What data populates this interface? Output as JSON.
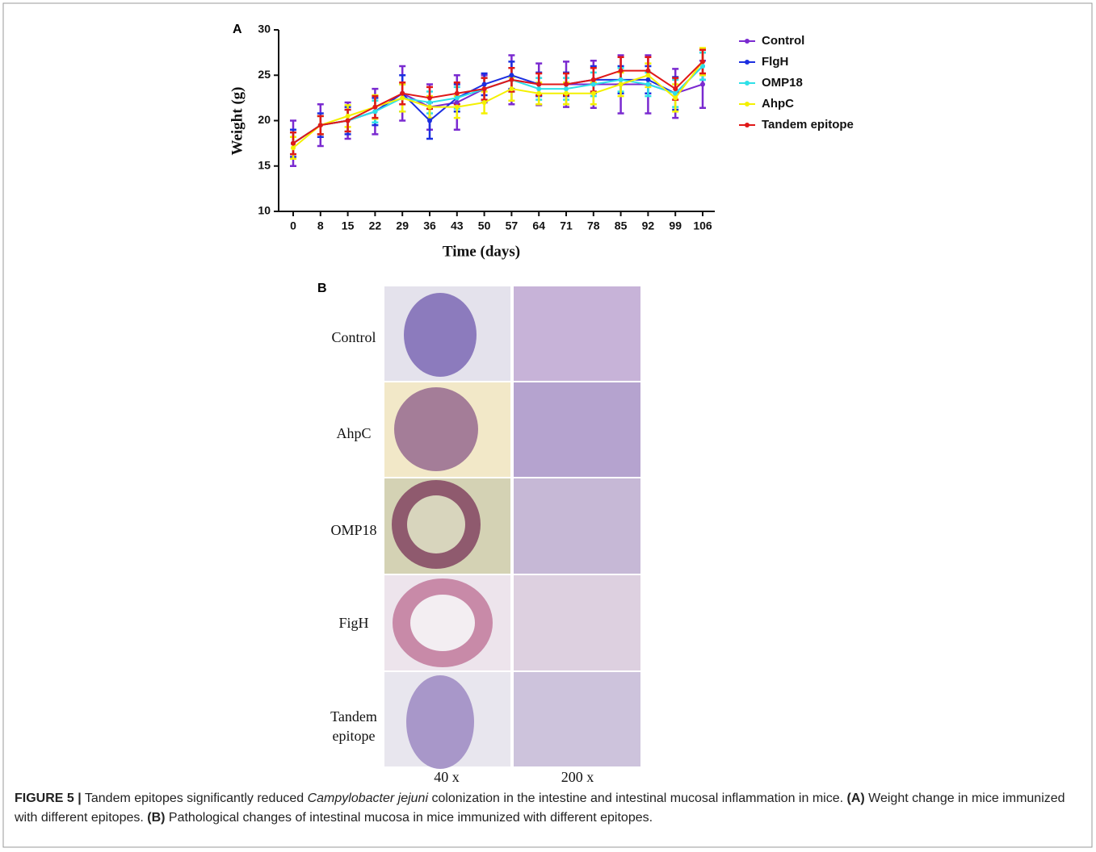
{
  "chart_data": {
    "type": "line",
    "panel": "A",
    "ylabel": "Weight (g)",
    "xlabel": "Time (days)",
    "categories": [
      "0",
      "8",
      "15",
      "22",
      "29",
      "36",
      "43",
      "50",
      "57",
      "64",
      "71",
      "78",
      "85",
      "92",
      "99",
      "106"
    ],
    "ylim": [
      10,
      30
    ],
    "yticks": [
      10,
      15,
      20,
      25,
      30
    ],
    "series": [
      {
        "name": "Control",
        "color": "#7a2ad0",
        "values": [
          17.5,
          19.5,
          20,
          21,
          23,
          21.5,
          22,
          23.5,
          24.5,
          24,
          24,
          24,
          24,
          24,
          23,
          24
        ],
        "errors": [
          2.5,
          2.3,
          2,
          2.5,
          3,
          2.5,
          3,
          1.5,
          2.7,
          2.3,
          2.5,
          2.6,
          3.2,
          3.2,
          2.7,
          2.6
        ]
      },
      {
        "name": "FlgH",
        "color": "#1c2fe0",
        "values": [
          17.5,
          19.5,
          20,
          21,
          23,
          20,
          22.5,
          24,
          25,
          24,
          24,
          24.5,
          24.5,
          24.5,
          23,
          26
        ],
        "errors": [
          1.5,
          1.3,
          1.5,
          1.5,
          2,
          2,
          1.5,
          1.2,
          1.5,
          1.3,
          1.3,
          1.5,
          1.5,
          1.5,
          1.8,
          1.5
        ]
      },
      {
        "name": "OMP18",
        "color": "#2ee0e8",
        "values": [
          17.5,
          19.5,
          20,
          21,
          22.5,
          22,
          22.5,
          23.5,
          24.5,
          23.5,
          23.5,
          24,
          24.5,
          24,
          23,
          26
        ],
        "errors": [
          1.2,
          1,
          1.2,
          1.2,
          1.5,
          1.2,
          1.2,
          1.2,
          1.3,
          1.2,
          1.2,
          1.3,
          1.3,
          1.3,
          1.5,
          1.5
        ]
      },
      {
        "name": "AhpC",
        "color": "#f4f000",
        "values": [
          17,
          19.5,
          20.5,
          21.5,
          22.5,
          21.5,
          21.5,
          22,
          23.5,
          23,
          23,
          23,
          24,
          25,
          22.5,
          26.5
        ],
        "errors": [
          1.2,
          1,
          1.2,
          1.3,
          1.5,
          1.2,
          1.2,
          1.2,
          1.3,
          1.2,
          1.2,
          1.2,
          1.3,
          1.3,
          1.5,
          1.5
        ]
      },
      {
        "name": "Tandem epitope",
        "color": "#e01818",
        "values": [
          17.5,
          19.5,
          20,
          21.5,
          23,
          22.5,
          23,
          23.5,
          24.5,
          24,
          24,
          24.5,
          25.5,
          25.5,
          23.5,
          26.5
        ],
        "errors": [
          1.2,
          1,
          1.2,
          1.2,
          1.2,
          1.2,
          1.2,
          1.2,
          1.3,
          1.2,
          1.2,
          1.3,
          1.5,
          1.5,
          1.2,
          1.3
        ]
      }
    ]
  },
  "panel_b": {
    "label": "B",
    "rows": [
      "Control",
      "AhpC",
      "OMP18",
      "FigH",
      "Tandem epitope"
    ],
    "columns": [
      "40 x",
      "200 x"
    ]
  },
  "caption": {
    "label": "FIGURE 5 |",
    "text_1": " Tandem epitopes significantly reduced ",
    "species": "Campylobacter jejuni",
    "text_2": " colonization in the intestine and intestinal mucosal inflammation in mice. ",
    "panel_a": "(A)",
    "text_3": " Weight change in mice immunized with different epitopes. ",
    "panel_b": "(B)",
    "text_4": " Pathological changes of intestinal mucosa in mice immunized with different epitopes."
  }
}
